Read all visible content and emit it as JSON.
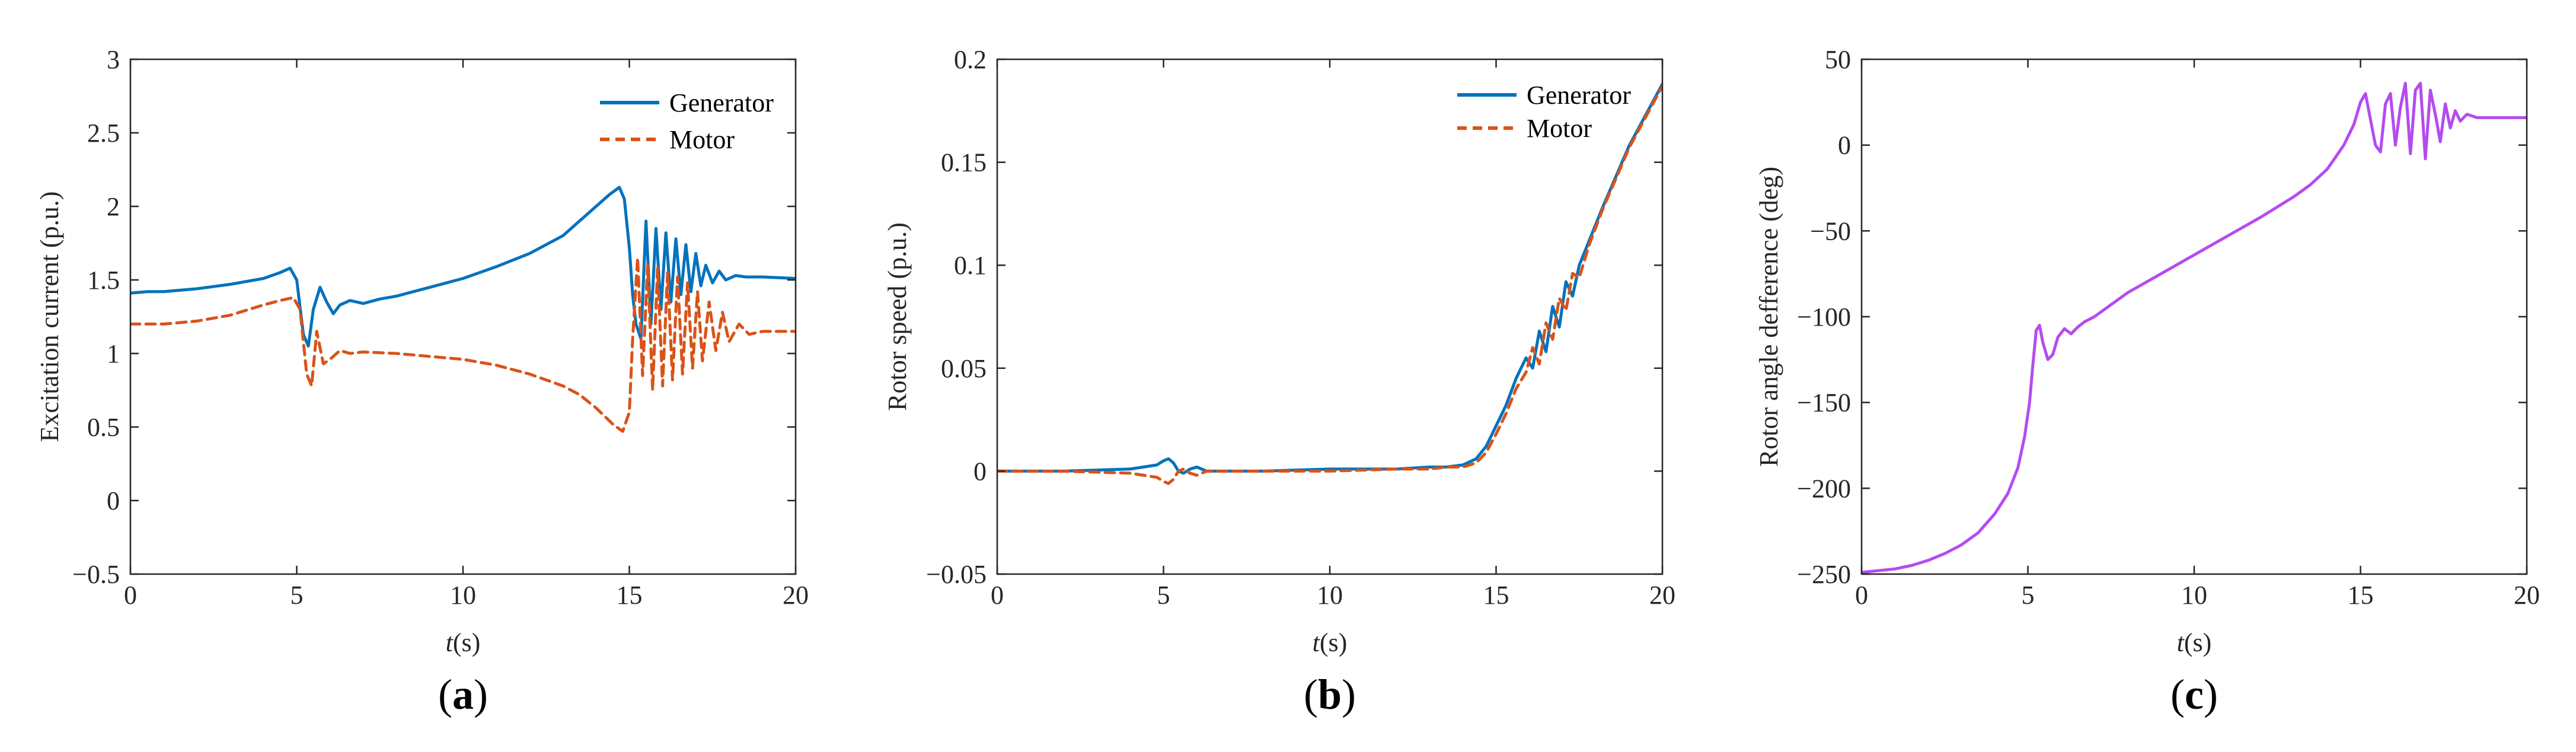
{
  "chart_data": [
    {
      "id": "a",
      "type": "line",
      "caption_letter": "a",
      "xlabel_italic": "t",
      "xlabel_rest": "(s)",
      "ylabel": "Excitation current (p.u.)",
      "xlim": [
        0,
        20
      ],
      "ylim": [
        -0.5,
        3
      ],
      "xticks": [
        0,
        5,
        10,
        15,
        20
      ],
      "xtick_labels": [
        "0",
        "5",
        "10",
        "15",
        "20"
      ],
      "yticks": [
        -0.5,
        0,
        0.5,
        1,
        1.5,
        2,
        2.5,
        3
      ],
      "ytick_labels": [
        "−0.5",
        "0",
        "0.5",
        "1",
        "1.5",
        "2",
        "2.5",
        "3"
      ],
      "legend_position": "top-right",
      "series": [
        {
          "name": "Generator",
          "color": "#0072BD",
          "style": "solid",
          "x": [
            0,
            0.5,
            1,
            2,
            3,
            4,
            4.5,
            4.8,
            5.0,
            5.2,
            5.35,
            5.5,
            5.7,
            5.9,
            6.1,
            6.3,
            6.6,
            7,
            7.5,
            8,
            9,
            10,
            11,
            12,
            13,
            13.5,
            14,
            14.4,
            14.7,
            14.85,
            15.0,
            15.1,
            15.2,
            15.35,
            15.5,
            15.65,
            15.8,
            15.95,
            16.1,
            16.25,
            16.4,
            16.55,
            16.7,
            16.85,
            17.0,
            17.15,
            17.3,
            17.5,
            17.7,
            17.9,
            18.2,
            18.5,
            19,
            20
          ],
          "y": [
            1.41,
            1.42,
            1.42,
            1.44,
            1.47,
            1.51,
            1.55,
            1.58,
            1.5,
            1.13,
            1.05,
            1.3,
            1.45,
            1.35,
            1.27,
            1.33,
            1.36,
            1.34,
            1.37,
            1.39,
            1.45,
            1.51,
            1.59,
            1.68,
            1.8,
            1.9,
            2.0,
            2.08,
            2.13,
            2.05,
            1.72,
            1.4,
            1.2,
            1.1,
            1.9,
            1.2,
            1.85,
            1.3,
            1.82,
            1.35,
            1.78,
            1.4,
            1.74,
            1.42,
            1.68,
            1.46,
            1.6,
            1.48,
            1.56,
            1.5,
            1.53,
            1.52,
            1.52,
            1.51
          ]
        },
        {
          "name": "Motor",
          "color": "#D95319",
          "style": "dashed",
          "x": [
            0,
            1,
            2,
            3,
            4,
            4.5,
            4.9,
            5.1,
            5.3,
            5.45,
            5.6,
            5.8,
            6.0,
            6.3,
            6.6,
            7,
            8,
            9,
            10,
            11,
            12,
            13,
            13.5,
            14,
            14.5,
            14.8,
            15.0,
            15.1,
            15.25,
            15.4,
            15.55,
            15.7,
            15.85,
            16.0,
            16.15,
            16.3,
            16.45,
            16.6,
            16.75,
            16.9,
            17.05,
            17.2,
            17.4,
            17.6,
            17.8,
            18.0,
            18.3,
            18.6,
            19,
            20
          ],
          "y": [
            1.2,
            1.2,
            1.22,
            1.26,
            1.33,
            1.36,
            1.38,
            1.3,
            0.86,
            0.78,
            1.15,
            0.93,
            0.96,
            1.02,
            1.0,
            1.01,
            1.0,
            0.98,
            0.96,
            0.92,
            0.86,
            0.78,
            0.72,
            0.63,
            0.52,
            0.47,
            0.6,
            1.1,
            1.65,
            0.85,
            1.6,
            0.75,
            1.58,
            0.78,
            1.55,
            0.82,
            1.52,
            0.86,
            1.48,
            0.9,
            1.42,
            0.95,
            1.35,
            1.02,
            1.28,
            1.08,
            1.2,
            1.13,
            1.15,
            1.15
          ]
        }
      ]
    },
    {
      "id": "b",
      "type": "line",
      "caption_letter": "b",
      "xlabel_italic": "t",
      "xlabel_rest": "(s)",
      "ylabel": "Rotor speed (p.u.)",
      "xlim": [
        0,
        20
      ],
      "ylim": [
        -0.05,
        0.2
      ],
      "xticks": [
        0,
        5,
        10,
        15,
        20
      ],
      "xtick_labels": [
        "0",
        "5",
        "10",
        "15",
        "20"
      ],
      "yticks": [
        -0.05,
        0,
        0.05,
        0.1,
        0.15,
        0.2
      ],
      "ytick_labels": [
        "−0.05",
        "0",
        "0.05",
        "0.1",
        "0.15",
        "0.2"
      ],
      "legend_position": "top-right",
      "series": [
        {
          "name": "Generator",
          "color": "#0072BD",
          "style": "solid",
          "x": [
            0,
            2,
            4,
            4.8,
            5.0,
            5.15,
            5.3,
            5.45,
            5.6,
            5.8,
            6.0,
            6.3,
            7,
            8,
            10,
            12,
            13,
            13.5,
            14,
            14.4,
            14.7,
            15.0,
            15.3,
            15.6,
            15.9,
            16.1,
            16.3,
            16.5,
            16.7,
            16.9,
            17.1,
            17.3,
            17.5,
            17.8,
            18.2,
            18.6,
            19.0,
            19.5,
            20
          ],
          "y": [
            0,
            0,
            0.001,
            0.003,
            0.005,
            0.006,
            0.004,
            0.0,
            -0.001,
            0.001,
            0.002,
            0.0,
            0.0,
            0.0,
            0.001,
            0.001,
            0.002,
            0.002,
            0.003,
            0.006,
            0.012,
            0.022,
            0.032,
            0.045,
            0.055,
            0.05,
            0.068,
            0.058,
            0.08,
            0.07,
            0.092,
            0.085,
            0.1,
            0.112,
            0.128,
            0.143,
            0.158,
            0.173,
            0.188
          ]
        },
        {
          "name": "Motor",
          "color": "#D95319",
          "style": "dashed",
          "x": [
            0,
            2,
            4,
            4.8,
            5.0,
            5.15,
            5.3,
            5.45,
            5.6,
            5.8,
            6.0,
            6.3,
            7,
            8,
            10,
            12,
            13,
            13.5,
            14,
            14.4,
            14.7,
            15.0,
            15.3,
            15.6,
            15.9,
            16.1,
            16.3,
            16.5,
            16.7,
            16.9,
            17.1,
            17.3,
            17.5,
            17.8,
            18.2,
            18.6,
            19.0,
            19.5,
            20
          ],
          "y": [
            0,
            0,
            -0.001,
            -0.003,
            -0.005,
            -0.006,
            -0.004,
            0.0,
            0.001,
            -0.001,
            -0.002,
            0.0,
            0.0,
            0.0,
            0.0,
            0.001,
            0.001,
            0.002,
            0.002,
            0.004,
            0.009,
            0.018,
            0.028,
            0.04,
            0.048,
            0.06,
            0.052,
            0.072,
            0.064,
            0.084,
            0.078,
            0.096,
            0.094,
            0.11,
            0.127,
            0.142,
            0.157,
            0.172,
            0.187
          ]
        }
      ]
    },
    {
      "id": "c",
      "type": "line",
      "caption_letter": "c",
      "xlabel_italic": "t",
      "xlabel_rest": "(s)",
      "ylabel": "Rotor angle defference (deg)",
      "xlim": [
        0,
        20
      ],
      "ylim": [
        -250,
        50
      ],
      "xticks": [
        0,
        5,
        10,
        15,
        20
      ],
      "xtick_labels": [
        "0",
        "5",
        "10",
        "15",
        "20"
      ],
      "yticks": [
        -250,
        -200,
        -150,
        -100,
        -50,
        0,
        50
      ],
      "ytick_labels": [
        "−250",
        "−200",
        "−150",
        "−100",
        "−50",
        "0",
        "50"
      ],
      "series": [
        {
          "name": "Rotor angle difference",
          "color": "#B44BF0",
          "style": "solid",
          "x": [
            0,
            0.5,
            1,
            1.5,
            2,
            2.5,
            3,
            3.5,
            4,
            4.4,
            4.7,
            4.9,
            5.05,
            5.15,
            5.25,
            5.35,
            5.45,
            5.6,
            5.75,
            5.9,
            6.1,
            6.3,
            6.5,
            6.7,
            7,
            7.5,
            8,
            9,
            10,
            11,
            12,
            13,
            13.5,
            14,
            14.5,
            14.8,
            15.0,
            15.15,
            15.3,
            15.45,
            15.6,
            15.75,
            15.9,
            16.05,
            16.2,
            16.35,
            16.5,
            16.65,
            16.8,
            16.95,
            17.1,
            17.25,
            17.4,
            17.55,
            17.7,
            17.85,
            18.0,
            18.2,
            18.5,
            19,
            20
          ],
          "y": [
            -249,
            -248,
            -247,
            -245,
            -242,
            -238,
            -233,
            -226,
            -215,
            -203,
            -188,
            -170,
            -150,
            -128,
            -108,
            -105,
            -115,
            -125,
            -122,
            -112,
            -107,
            -110,
            -106,
            -103,
            -100,
            -93,
            -86,
            -75,
            -64,
            -53,
            -42,
            -30,
            -23,
            -14,
            0,
            12,
            25,
            30,
            15,
            0,
            -4,
            24,
            30,
            0,
            22,
            36,
            -5,
            32,
            36,
            -8,
            32,
            18,
            2,
            24,
            10,
            20,
            14,
            18,
            16,
            16,
            16
          ]
        }
      ]
    }
  ]
}
